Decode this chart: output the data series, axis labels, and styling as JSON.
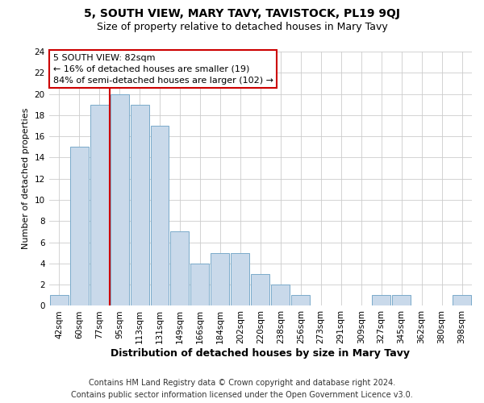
{
  "title": "5, SOUTH VIEW, MARY TAVY, TAVISTOCK, PL19 9QJ",
  "subtitle": "Size of property relative to detached houses in Mary Tavy",
  "xlabel": "Distribution of detached houses by size in Mary Tavy",
  "ylabel": "Number of detached properties",
  "bar_labels": [
    "42sqm",
    "60sqm",
    "77sqm",
    "95sqm",
    "113sqm",
    "131sqm",
    "149sqm",
    "166sqm",
    "184sqm",
    "202sqm",
    "220sqm",
    "238sqm",
    "256sqm",
    "273sqm",
    "291sqm",
    "309sqm",
    "327sqm",
    "345sqm",
    "362sqm",
    "380sqm",
    "398sqm"
  ],
  "bar_values": [
    1,
    15,
    19,
    20,
    19,
    17,
    7,
    4,
    5,
    5,
    3,
    2,
    1,
    0,
    0,
    0,
    1,
    1,
    0,
    0,
    1
  ],
  "bar_color": "#c9d9ea",
  "bar_edge_color": "#7aaaca",
  "reference_line_x": 2.5,
  "reference_line_color": "#cc0000",
  "ylim": [
    0,
    24
  ],
  "yticks": [
    0,
    2,
    4,
    6,
    8,
    10,
    12,
    14,
    16,
    18,
    20,
    22,
    24
  ],
  "annotation_title": "5 SOUTH VIEW: 82sqm",
  "annotation_line1": "← 16% of detached houses are smaller (19)",
  "annotation_line2": "84% of semi-detached houses are larger (102) →",
  "annotation_box_color": "#ffffff",
  "annotation_box_edge": "#cc0000",
  "footer_line1": "Contains HM Land Registry data © Crown copyright and database right 2024.",
  "footer_line2": "Contains public sector information licensed under the Open Government Licence v3.0.",
  "background_color": "#ffffff",
  "plot_background_color": "#ffffff",
  "grid_color": "#cccccc",
  "title_fontsize": 10,
  "subtitle_fontsize": 9,
  "xlabel_fontsize": 9,
  "ylabel_fontsize": 8,
  "footer_fontsize": 7,
  "tick_fontsize": 7.5,
  "annotation_fontsize": 8
}
